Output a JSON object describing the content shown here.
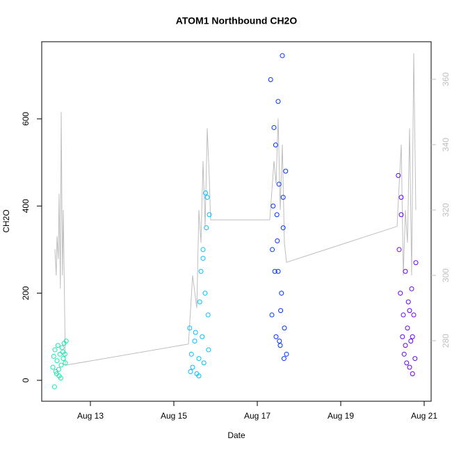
{
  "chart_data": {
    "type": "scatter",
    "title": "ATOM1 Northbound CH2O",
    "x_label": "Date",
    "y_label": "CH2O",
    "xlim": [
      11.833,
      21.167
    ],
    "xticks": [
      {
        "value": 13,
        "label": "Aug 13"
      },
      {
        "value": 15,
        "label": "Aug 15"
      },
      {
        "value": 17,
        "label": "Aug 17"
      },
      {
        "value": 19,
        "label": "Aug 19"
      },
      {
        "value": 21,
        "label": "Aug 21"
      }
    ],
    "ylim": [
      -48,
      777
    ],
    "yticks": [
      0,
      200,
      400,
      600
    ],
    "y2lim": [
      261.5,
      371.5
    ],
    "y2ticks": [
      280,
      300,
      320,
      340,
      360
    ],
    "series": [
      {
        "color": "#19e8b0",
        "x": [
          12.1,
          12.12,
          12.15,
          12.17,
          12.2,
          12.22,
          12.25,
          12.27,
          12.3,
          12.32,
          12.35,
          12.37,
          12.4,
          12.42,
          12.14,
          12.24,
          12.34,
          12.19,
          12.29,
          12.39
        ],
        "values": [
          30,
          55,
          70,
          20,
          45,
          80,
          10,
          60,
          35,
          75,
          50,
          85,
          40,
          90,
          -15,
          25,
          65,
          15,
          5,
          60
        ]
      },
      {
        "color": "#00bfff",
        "x": [
          15.38,
          15.42,
          15.45,
          15.5,
          15.55,
          15.6,
          15.62,
          15.65,
          15.68,
          15.7,
          15.72,
          15.75,
          15.78,
          15.8,
          15.82,
          15.85,
          15.6,
          15.7,
          15.76,
          15.83,
          15.4,
          15.52
        ],
        "values": [
          120,
          60,
          30,
          90,
          15,
          50,
          180,
          250,
          100,
          300,
          40,
          200,
          350,
          420,
          150,
          380,
          10,
          280,
          430,
          70,
          20,
          110
        ]
      },
      {
        "color": "#0033ff",
        "x": [
          17.32,
          17.35,
          17.38,
          17.4,
          17.42,
          17.45,
          17.48,
          17.5,
          17.52,
          17.55,
          17.58,
          17.6,
          17.62,
          17.65,
          17.68,
          17.7,
          17.44,
          17.5,
          17.56,
          17.62,
          17.36,
          17.64,
          17.47,
          17.53
        ],
        "values": [
          690,
          150,
          400,
          580,
          250,
          100,
          320,
          640,
          450,
          80,
          200,
          745,
          350,
          120,
          480,
          60,
          540,
          250,
          160,
          420,
          300,
          50,
          380,
          90
        ]
      },
      {
        "color": "#6600ff",
        "x": [
          20.38,
          20.4,
          20.43,
          20.45,
          20.48,
          20.5,
          20.52,
          20.55,
          20.58,
          20.6,
          20.62,
          20.65,
          20.68,
          20.7,
          20.72,
          20.75,
          20.78,
          20.8,
          20.45,
          20.55,
          20.65,
          20.72
        ],
        "values": [
          470,
          300,
          200,
          380,
          100,
          150,
          60,
          250,
          40,
          120,
          180,
          30,
          90,
          210,
          15,
          150,
          50,
          270,
          420,
          80,
          160,
          100
        ]
      },
      {
        "type": "line",
        "axis": "y2",
        "color": "#bebebe",
        "x": [
          12.15,
          12.18,
          12.2,
          12.23,
          12.25,
          12.28,
          12.3,
          12.33,
          12.35,
          12.4,
          15.35,
          15.45,
          15.55,
          15.6,
          15.65,
          15.7,
          15.75,
          15.8,
          15.85,
          15.88,
          17.3,
          17.4,
          17.45,
          17.5,
          17.55,
          17.6,
          17.65,
          17.7,
          20.35,
          20.45,
          20.5,
          20.55,
          20.6,
          20.65,
          20.7,
          20.75,
          20.8
        ],
        "values": [
          308,
          300,
          312,
          305,
          325,
          296,
          350,
          300,
          320,
          272.5,
          279,
          300,
          290,
          320,
          310,
          335,
          315,
          345,
          330,
          317,
          317,
          335,
          328,
          348,
          320,
          340,
          310,
          304,
          315,
          340,
          300,
          320,
          310,
          345,
          300,
          368,
          320
        ]
      }
    ]
  }
}
